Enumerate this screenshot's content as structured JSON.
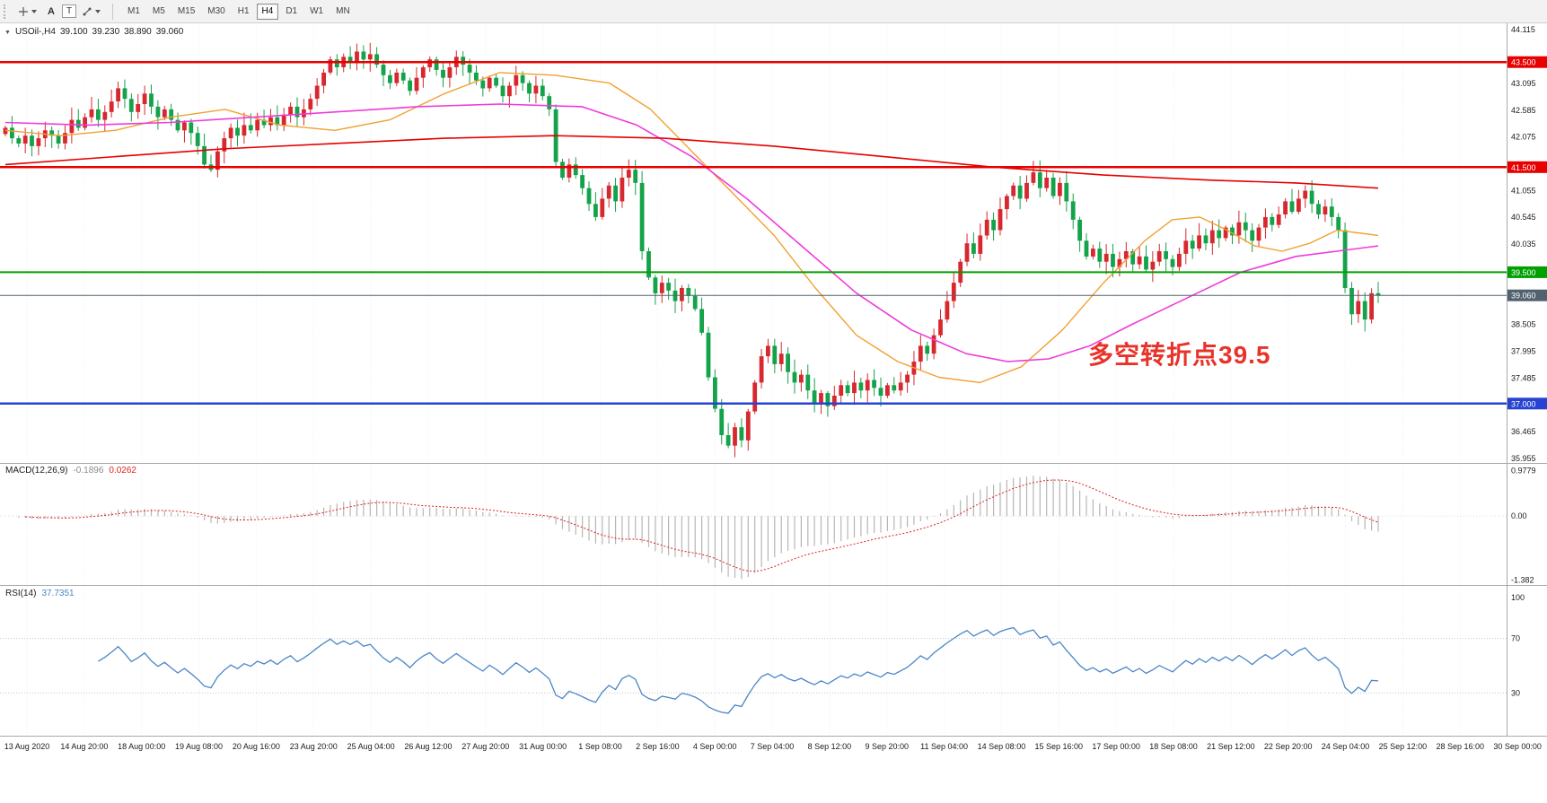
{
  "toolbar": {
    "a_label": "A",
    "t_label": "T",
    "timeframes": [
      "M1",
      "M5",
      "M15",
      "M30",
      "H1",
      "H4",
      "D1",
      "W1",
      "MN"
    ],
    "selected_timeframe": "H4"
  },
  "main_label": {
    "symbol": "USOil-,H4",
    "open": "39.100",
    "high": "39.230",
    "low": "38.890",
    "close": "39.060"
  },
  "macd_label": {
    "name": "MACD(12,26,9)",
    "main_value": "-0.1896",
    "signal_value": "0.0262"
  },
  "rsi_label": {
    "name": "RSI(14)",
    "value": "37.7351"
  },
  "annotation": {
    "text": "多空转折点39.5",
    "color": "#e8332a"
  },
  "chart_data": {
    "type": "candlestick",
    "symbol": "USOil-",
    "timeframe": "H4",
    "ohlc_display": {
      "open": 39.1,
      "high": 39.23,
      "low": 38.89,
      "close": 39.06
    },
    "main": {
      "ylim": [
        35.87,
        44.22
      ],
      "yticks": [
        35.955,
        36.465,
        36.975,
        37.485,
        37.995,
        38.505,
        39.015,
        39.525,
        40.035,
        40.545,
        41.055,
        41.565,
        42.075,
        42.585,
        43.095,
        43.605,
        44.115
      ],
      "up_color": "#d7282f",
      "down_color": "#14a24a",
      "levels": [
        {
          "price": 43.5,
          "label": "43.500",
          "color": "#e60000",
          "width": 2.5
        },
        {
          "price": 41.5,
          "label": "41.500",
          "color": "#e60000",
          "width": 2.5
        },
        {
          "price": 39.5,
          "label": "39.500",
          "color": "#00a000",
          "width": 2
        },
        {
          "price": 39.06,
          "label": "39.060",
          "color": "#51626e",
          "width": 1
        },
        {
          "price": 37.0,
          "label": "37.000",
          "color": "#2743d0",
          "width": 2.5
        }
      ],
      "closes": [
        42.25,
        42.05,
        41.95,
        42.1,
        41.9,
        42.05,
        42.2,
        42.1,
        41.95,
        42.15,
        42.4,
        42.25,
        42.45,
        42.6,
        42.4,
        42.55,
        42.75,
        43.0,
        42.8,
        42.55,
        42.7,
        42.9,
        42.65,
        42.45,
        42.6,
        42.4,
        42.2,
        42.35,
        42.15,
        41.9,
        41.55,
        41.45,
        41.8,
        42.05,
        42.25,
        42.1,
        42.3,
        42.2,
        42.4,
        42.3,
        42.45,
        42.3,
        42.5,
        42.65,
        42.45,
        42.6,
        42.8,
        43.05,
        43.3,
        43.55,
        43.4,
        43.6,
        43.5,
        43.7,
        43.55,
        43.65,
        43.45,
        43.25,
        43.1,
        43.3,
        43.15,
        42.95,
        43.2,
        43.4,
        43.55,
        43.35,
        43.2,
        43.4,
        43.6,
        43.45,
        43.3,
        43.15,
        43.0,
        43.2,
        43.05,
        42.85,
        43.05,
        43.25,
        43.1,
        42.9,
        43.05,
        42.85,
        42.6,
        41.6,
        41.3,
        41.55,
        41.35,
        41.1,
        40.8,
        40.55,
        40.9,
        41.15,
        40.85,
        41.3,
        41.45,
        41.2,
        39.9,
        39.4,
        39.1,
        39.3,
        39.15,
        38.95,
        39.2,
        39.05,
        38.8,
        38.35,
        37.5,
        36.9,
        36.4,
        36.2,
        36.55,
        36.3,
        36.85,
        37.4,
        37.9,
        38.1,
        37.75,
        37.95,
        37.6,
        37.4,
        37.55,
        37.25,
        37.0,
        37.2,
        36.95,
        37.15,
        37.35,
        37.2,
        37.4,
        37.25,
        37.45,
        37.3,
        37.15,
        37.35,
        37.25,
        37.4,
        37.55,
        37.8,
        38.1,
        37.95,
        38.3,
        38.6,
        38.95,
        39.3,
        39.7,
        40.05,
        39.85,
        40.2,
        40.5,
        40.3,
        40.7,
        40.95,
        41.15,
        40.9,
        41.2,
        41.4,
        41.1,
        41.3,
        40.95,
        41.2,
        40.85,
        40.5,
        40.1,
        39.8,
        39.95,
        39.7,
        39.85,
        39.6,
        39.75,
        39.9,
        39.65,
        39.8,
        39.55,
        39.7,
        39.9,
        39.75,
        39.6,
        39.85,
        40.1,
        39.95,
        40.2,
        40.05,
        40.3,
        40.15,
        40.35,
        40.2,
        40.45,
        40.3,
        40.1,
        40.35,
        40.55,
        40.4,
        40.6,
        40.85,
        40.65,
        40.9,
        41.05,
        40.8,
        40.6,
        40.75,
        40.55,
        40.3,
        39.2,
        38.7,
        38.95,
        38.6,
        39.1,
        39.06
      ],
      "ma_lines": [
        {
          "name": "ma-fast-orange",
          "color": "#f0a132",
          "width": 1.4,
          "points": [
            [
              0,
              42.2
            ],
            [
              0.04,
              42.1
            ],
            [
              0.08,
              42.2
            ],
            [
              0.12,
              42.45
            ],
            [
              0.16,
              42.6
            ],
            [
              0.2,
              42.3
            ],
            [
              0.24,
              42.2
            ],
            [
              0.28,
              42.4
            ],
            [
              0.32,
              42.9
            ],
            [
              0.36,
              43.3
            ],
            [
              0.4,
              43.25
            ],
            [
              0.44,
              43.1
            ],
            [
              0.47,
              42.6
            ],
            [
              0.5,
              41.8
            ],
            [
              0.53,
              41.0
            ],
            [
              0.56,
              40.2
            ],
            [
              0.59,
              39.2
            ],
            [
              0.62,
              38.3
            ],
            [
              0.65,
              37.8
            ],
            [
              0.68,
              37.5
            ],
            [
              0.71,
              37.4
            ],
            [
              0.74,
              37.7
            ],
            [
              0.77,
              38.4
            ],
            [
              0.8,
              39.3
            ],
            [
              0.83,
              40.1
            ],
            [
              0.85,
              40.5
            ],
            [
              0.87,
              40.55
            ],
            [
              0.89,
              40.3
            ],
            [
              0.91,
              40.0
            ],
            [
              0.93,
              39.9
            ],
            [
              0.95,
              40.05
            ],
            [
              0.97,
              40.3
            ],
            [
              1,
              40.2
            ]
          ]
        },
        {
          "name": "ma-mid-magenta",
          "color": "#ef3bdb",
          "width": 1.6,
          "points": [
            [
              0,
              42.35
            ],
            [
              0.06,
              42.3
            ],
            [
              0.12,
              42.35
            ],
            [
              0.18,
              42.45
            ],
            [
              0.24,
              42.55
            ],
            [
              0.3,
              42.65
            ],
            [
              0.36,
              42.7
            ],
            [
              0.42,
              42.65
            ],
            [
              0.46,
              42.3
            ],
            [
              0.5,
              41.7
            ],
            [
              0.54,
              40.9
            ],
            [
              0.58,
              40.0
            ],
            [
              0.62,
              39.1
            ],
            [
              0.66,
              38.4
            ],
            [
              0.7,
              37.95
            ],
            [
              0.73,
              37.8
            ],
            [
              0.76,
              37.85
            ],
            [
              0.79,
              38.1
            ],
            [
              0.82,
              38.5
            ],
            [
              0.86,
              39.0
            ],
            [
              0.9,
              39.5
            ],
            [
              0.94,
              39.8
            ],
            [
              1,
              40.0
            ]
          ]
        },
        {
          "name": "ma-slow-red",
          "color": "#e60000",
          "width": 1.6,
          "points": [
            [
              0,
              41.55
            ],
            [
              0.08,
              41.7
            ],
            [
              0.16,
              41.85
            ],
            [
              0.24,
              41.95
            ],
            [
              0.32,
              42.05
            ],
            [
              0.4,
              42.1
            ],
            [
              0.48,
              42.05
            ],
            [
              0.56,
              41.9
            ],
            [
              0.64,
              41.7
            ],
            [
              0.72,
              41.5
            ],
            [
              0.8,
              41.35
            ],
            [
              0.88,
              41.25
            ],
            [
              0.94,
              41.2
            ],
            [
              1,
              41.1
            ]
          ]
        }
      ]
    },
    "macd": {
      "params": "12,26,9",
      "fast": 12,
      "slow": 26,
      "signal": 9,
      "ylim": [
        -1.45,
        1.05
      ],
      "ticks": [
        {
          "v": 0.9779,
          "label": "0.9779"
        },
        {
          "v": 0,
          "label": "0.00"
        },
        {
          "v": -1.382,
          "label": "-1.382"
        }
      ],
      "hist_color": "#b6b6b6",
      "signal_color": "#e01f1f"
    },
    "rsi": {
      "period": 14,
      "ylim": [
        0,
        100
      ],
      "ticks": [
        {
          "v": 100,
          "label": "100"
        },
        {
          "v": 70,
          "label": "70"
        },
        {
          "v": 30,
          "label": "30"
        }
      ],
      "levels": [
        70,
        30
      ],
      "color": "#4a86c8"
    },
    "xlabels": [
      "13 Aug 2020",
      "14 Aug 20:00",
      "18 Aug 00:00",
      "19 Aug 08:00",
      "20 Aug 16:00",
      "23 Aug 20:00",
      "25 Aug 04:00",
      "26 Aug 12:00",
      "27 Aug 20:00",
      "31 Aug 00:00",
      "1 Sep 08:00",
      "2 Sep 16:00",
      "4 Sep 00:00",
      "7 Sep 04:00",
      "8 Sep 12:00",
      "9 Sep 20:00",
      "11 Sep 04:00",
      "14 Sep 08:00",
      "15 Sep 16:00",
      "17 Sep 00:00",
      "18 Sep 08:00",
      "21 Sep 12:00",
      "22 Sep 20:00",
      "24 Sep 04:00",
      "25 Sep 12:00",
      "28 Sep 16:00",
      "30 Sep 00:00"
    ]
  }
}
